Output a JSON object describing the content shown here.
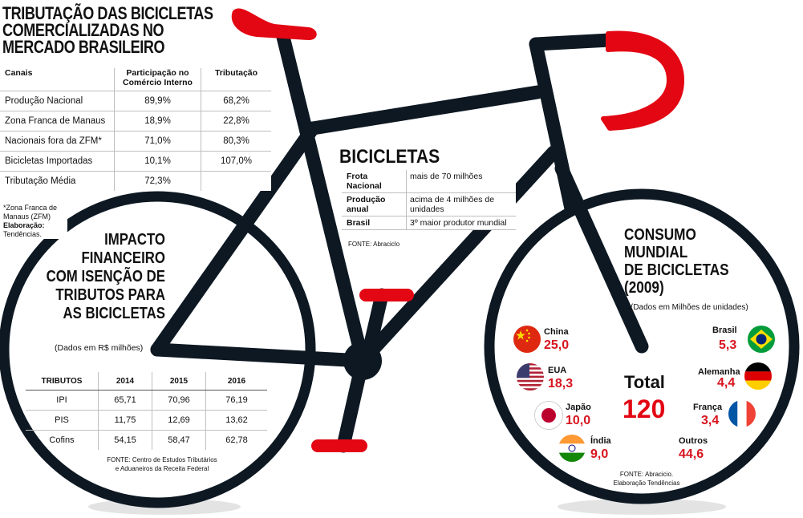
{
  "colors": {
    "frame": "#0d1822",
    "accent": "#e30613",
    "tire_shadow": "#e5e5e5"
  },
  "tributacao": {
    "title_lines": [
      "TRIBUTAÇÃO DAS BICICLETAS",
      "COMERCIALIZADAS NO",
      "MERCADO BRASILEIRO"
    ],
    "headers": [
      "Canais",
      "Participação no Comércio Interno",
      "Tributação"
    ],
    "rows": [
      [
        "Produção Nacional",
        "89,9%",
        "68,2%"
      ],
      [
        "Zona Franca de Manaus",
        "18,9%",
        "22,8%"
      ],
      [
        "Nacionais fora da ZFM*",
        "71,0%",
        "80,3%"
      ],
      [
        "Bicicletas Importadas",
        "10,1%",
        "107,0%"
      ],
      [
        "Tributação Média",
        "72,3%",
        ""
      ]
    ],
    "footnote": "*Zona Franca de Manaus (ZFM)",
    "elab_label": "Elaboração:",
    "elab_value": "Tendências."
  },
  "impacto": {
    "title_lines": [
      "IMPACTO",
      "FINANCEIRO",
      "COM ISENÇÃO DE",
      "TRIBUTOS PARA",
      "AS BICICLETAS"
    ],
    "subtitle": "(Dados em R$ milhões)",
    "headers": [
      "TRIBUTOS",
      "2014",
      "2015",
      "2016"
    ],
    "rows": [
      [
        "IPI",
        "65,71",
        "70,96",
        "76,19"
      ],
      [
        "PIS",
        "11,75",
        "12,69",
        "13,62"
      ],
      [
        "Cofins",
        "54,15",
        "58,47",
        "62,78"
      ]
    ],
    "source": "FONTE: Centro de Estudos Tributários e Aduaneiros da Receita Federal"
  },
  "bicicletas": {
    "title": "BICICLETAS",
    "rows": [
      [
        "Frota Nacional",
        "mais de 70 milhões"
      ],
      [
        "Produção anual",
        "acima de 4 milhões de unidades"
      ],
      [
        "Brasil",
        " 3º maior produtor mundial"
      ]
    ],
    "source": "FONTE: Abraciclo"
  },
  "consumo": {
    "title_lines": [
      "CONSUMO",
      "MUNDIAL",
      "DE BICICLETAS",
      "(2009)"
    ],
    "subtitle": "(Dados em Milhões de unidades)",
    "total_label": "Total",
    "total_value": "120",
    "countries": [
      {
        "name": "China",
        "value": "25,0",
        "flag": "china-flag-icon"
      },
      {
        "name": "EUA",
        "value": "18,3",
        "flag": "usa-flag-icon"
      },
      {
        "name": "Japão",
        "value": "10,0",
        "flag": "japan-flag-icon"
      },
      {
        "name": "Índia",
        "value": "9,0",
        "flag": "india-flag-icon"
      },
      {
        "name": "Brasil",
        "value": "5,3",
        "flag": "brazil-flag-icon"
      },
      {
        "name": "Alemanha",
        "value": "4,4",
        "flag": "germany-flag-icon"
      },
      {
        "name": "França",
        "value": "3,4",
        "flag": "france-flag-icon"
      },
      {
        "name": "Outros",
        "value": "44,6",
        "flag": ""
      }
    ],
    "source": "FONTE: Abracicio. Elaboração Tendências"
  }
}
